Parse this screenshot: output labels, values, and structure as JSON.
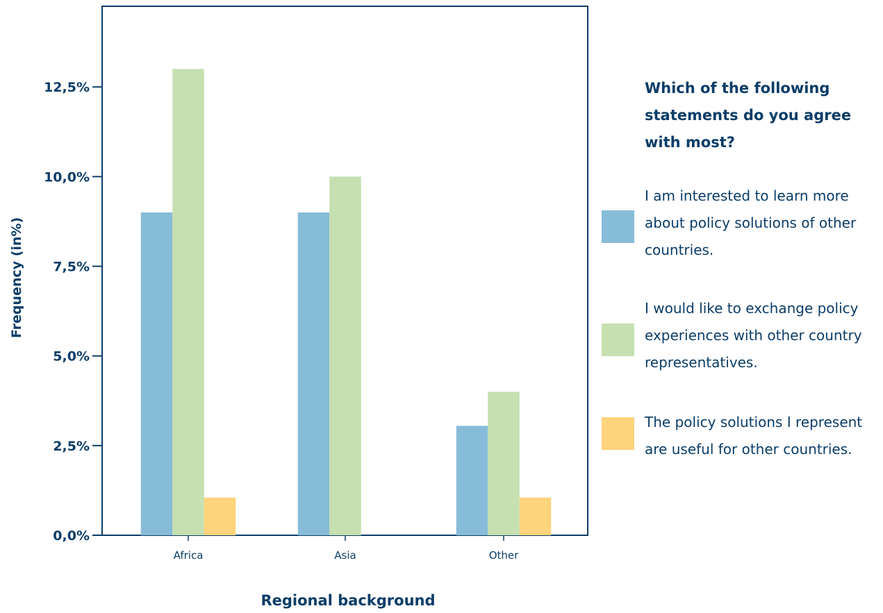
{
  "chart_data": {
    "type": "bar",
    "categories": [
      "Africa",
      "Asia",
      "Other"
    ],
    "series": [
      {
        "name": "I am interested to learn more about policy solutions of other countries.",
        "values": [
          9.0,
          9.0,
          3.05
        ],
        "color": "#87bcd8"
      },
      {
        "name": "I would like to exchange policy experiences with other country representatives.",
        "values": [
          13.0,
          10.0,
          4.0
        ],
        "color": "#c6e0b1"
      },
      {
        "name": "The policy solutions I represent are useful for other countries.",
        "values": [
          1.05,
          0,
          1.05
        ],
        "color": "#fdd37c"
      }
    ],
    "yticks": [
      0,
      2.5,
      5,
      7.5,
      10,
      12.5
    ],
    "ytick_labels": [
      "0,0%",
      "2,5%",
      "5,0%",
      "7,5%",
      "10,0%",
      "12,5%"
    ],
    "ylim": [
      0,
      14.75
    ],
    "xlabel": "Regional background",
    "ylabel": "Frequency (in%)",
    "legend_title": "Which of the following statements do you agree with most?",
    "legend_position": "right",
    "grid": false,
    "axis_color": "#0b3d68"
  },
  "legend": {
    "title": "Which of the following statements do you agree with most?",
    "items": [
      {
        "label": "I am interested to learn more about policy solutions of other countries.",
        "color": "#87bcd8"
      },
      {
        "label": "I would like to exchange policy experiences with other country representatives.",
        "color": "#c6e0b1"
      },
      {
        "label": "The policy solutions I represent are useful for other countries.",
        "color": "#fdd37c"
      }
    ]
  }
}
